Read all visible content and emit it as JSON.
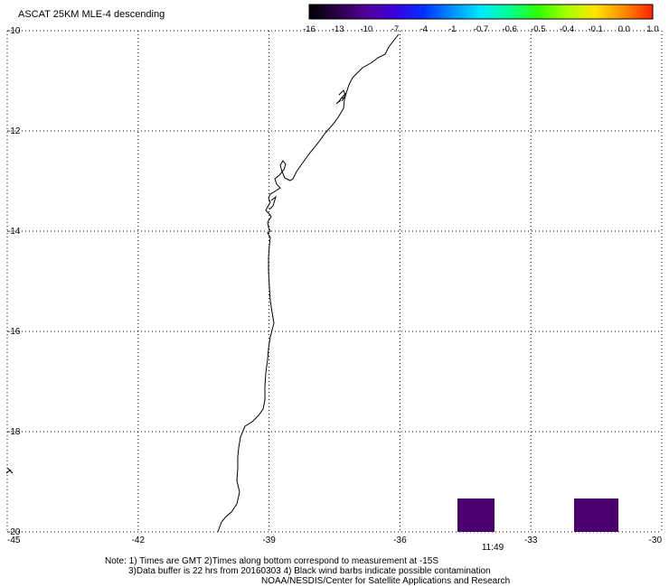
{
  "title": "ASCAT 25KM MLE-4 descending",
  "colorbar": {
    "labels": [
      "-16",
      "-13",
      "-10",
      "-7",
      "-4",
      "-1",
      "-0.7",
      "-0.6",
      "-0.5",
      "-0.4",
      "-0.1",
      "0.0",
      "1.0"
    ],
    "colors": [
      "#000000",
      "#2a0048",
      "#52009a",
      "#3c00e0",
      "#0030ff",
      "#0090ff",
      "#00e8ff",
      "#00ff90",
      "#30ff00",
      "#a8ff00",
      "#ffe400",
      "#ff8c00",
      "#ff2000"
    ]
  },
  "axes": {
    "lat_labels": [
      "-10",
      "-12",
      "-14",
      "-16",
      "-18",
      "-20"
    ],
    "lon_labels": [
      "-45",
      "-42",
      "-39",
      "-36",
      "-33",
      "-30"
    ],
    "lat_range": [
      -10,
      -20
    ],
    "lon_range": [
      -45,
      -30
    ],
    "grid": true
  },
  "swaths": {
    "color": "#4b0070",
    "time_label": "11:49",
    "time_label_color": "#ff2000"
  },
  "notes": {
    "line1": "Note: 1) Times are GMT 2)Times along bottom correspond to measurement at -15S",
    "line2": "3)Data buffer is 22 hrs from 20160303 4) Black wind barbs indicate possible contamination",
    "line3": "NOAA/NESDIS/Center for Satellite Applications and Research"
  }
}
